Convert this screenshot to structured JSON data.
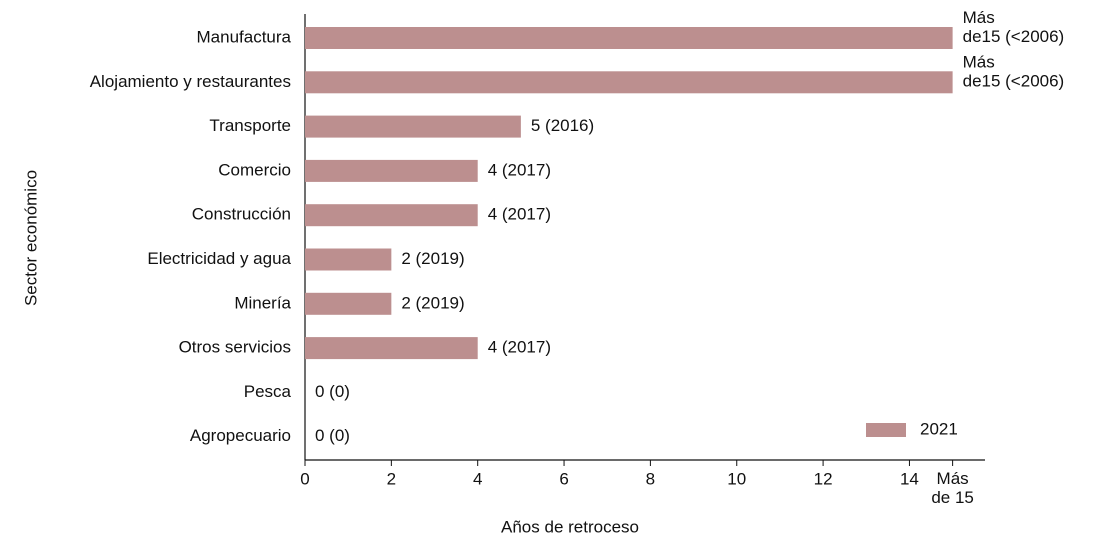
{
  "chart_data": {
    "type": "bar",
    "orientation": "horizontal",
    "xlabel": "Años de retroceso",
    "ylabel": "Sector económico",
    "categories": [
      "Manufactura",
      "Alojamiento y restaurantes",
      "Transporte",
      "Comercio",
      "Construcción",
      "Electricidad y agua",
      "Minería",
      "Otros servicios",
      "Pesca",
      "Agropecuario"
    ],
    "series": [
      {
        "name": "2021",
        "color": "#bc8f8f",
        "values": [
          15,
          15,
          5,
          4,
          4,
          2,
          2,
          4,
          0,
          0
        ],
        "value_labels": [
          "Más de15 (<2006)",
          "Más de15 (<2006)",
          "5 (2016)",
          "4 (2017)",
          "4 (2017)",
          "2 (2019)",
          "2 (2019)",
          "4 (2017)",
          "0 (0)",
          "0 (0)"
        ]
      }
    ],
    "xlim": [
      0,
      15.75
    ],
    "xticks": [
      0,
      2,
      4,
      6,
      8,
      10,
      12,
      14,
      {
        "value": 15,
        "label": "Más de 15"
      }
    ],
    "legend": "lower right"
  }
}
